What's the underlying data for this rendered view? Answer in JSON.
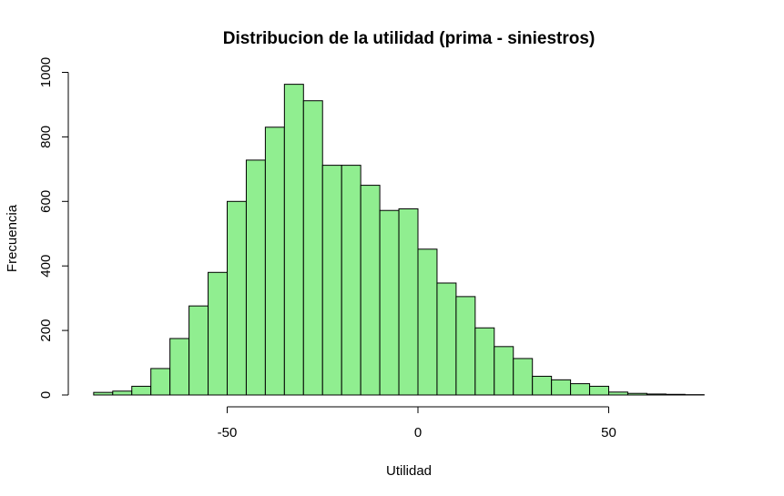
{
  "chart_data": {
    "type": "bar",
    "title": "Distribucion de la utilidad (prima - siniestros)",
    "xlabel": "Utilidad",
    "ylabel": "Frecuencia",
    "bin_width": 5,
    "bin_start": -85,
    "values": [
      8,
      12,
      27,
      82,
      175,
      276,
      380,
      600,
      728,
      830,
      963,
      912,
      712,
      712,
      650,
      572,
      577,
      452,
      347,
      305,
      208,
      150,
      113,
      58,
      47,
      35,
      27,
      9,
      5,
      3,
      2,
      1
    ],
    "xlim": [
      -85,
      75
    ],
    "ylim": [
      0,
      1000
    ],
    "x_ticks": [
      -50,
      0,
      50
    ],
    "y_ticks": [
      0,
      200,
      400,
      600,
      800,
      1000
    ],
    "bar_color": "#90ee90",
    "grid": false
  }
}
